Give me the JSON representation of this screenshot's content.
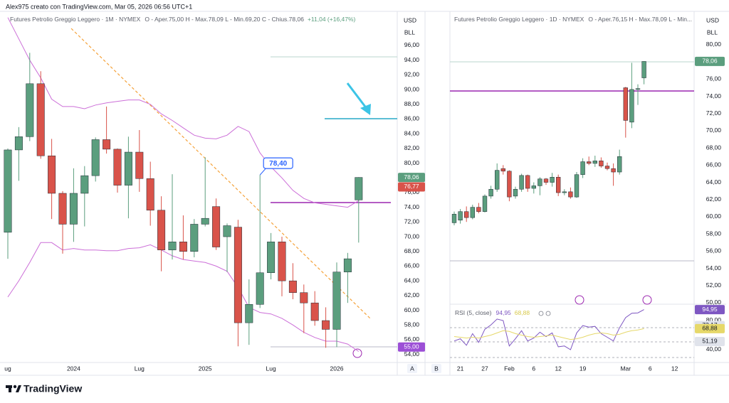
{
  "header": {
    "author_line": "Alex975 creato con TradingView.com, Mar 05, 2026 06:56 UTC+1"
  },
  "footer": {
    "logo_text": "TradingView"
  },
  "buttons": [
    "A",
    "B"
  ],
  "chart_data": [
    {
      "type": "candlestick",
      "title": "Futures Petrolio Greggio Leggero · 1M · NYMEX",
      "ohlc_text": "O - Aper.75,00  H - Max.78,09  L - Min.69,20  C - Chius.78,06",
      "change": "+11,04 (+16,47%)",
      "currency": "USD",
      "unit": "BLL",
      "up_color": "#5b9e7e",
      "down_color": "#d9534a",
      "grid": false,
      "categories": [
        "ug",
        null,
        null,
        null,
        null,
        null,
        "2024",
        null,
        null,
        null,
        null,
        null,
        "Lug",
        null,
        null,
        null,
        null,
        null,
        "2025",
        null,
        null,
        null,
        null,
        null,
        "Lug",
        null,
        null,
        null,
        null,
        null,
        "2026",
        null,
        null,
        null,
        null,
        null
      ],
      "open": [
        70.6,
        81.8,
        83.6,
        90.8,
        81.0,
        75.9,
        71.7,
        75.9,
        78.3,
        83.2,
        81.9,
        77.0,
        81.5,
        77.9,
        73.6,
        68.2,
        69.3,
        68.0,
        71.7,
        74.1,
        70.0,
        71.3,
        58.3,
        60.8,
        65.1,
        69.3,
        64.0,
        62.4,
        61.0,
        58.6,
        57.4,
        65.2,
        75.0,
        null,
        null,
        null
      ],
      "high": [
        82.0,
        84.9,
        95.0,
        92.5,
        83.3,
        76.2,
        79.3,
        79.6,
        83.5,
        87.7,
        82.0,
        83.6,
        84.5,
        80.2,
        75.5,
        78.5,
        72.9,
        72.4,
        80.8,
        75.2,
        71.8,
        72.3,
        64.2,
        78.4,
        70.5,
        70.0,
        66.4,
        63.5,
        62.6,
        60.4,
        66.5,
        67.8,
        78.09,
        null,
        null,
        null
      ],
      "low": [
        67.0,
        77.6,
        83.0,
        80.6,
        72.4,
        67.7,
        69.3,
        71.4,
        77.5,
        81.3,
        76.0,
        72.5,
        76.1,
        71.5,
        65.3,
        66.9,
        66.9,
        67.2,
        71.4,
        68.2,
        65.2,
        55.1,
        55.3,
        60.3,
        64.2,
        61.9,
        61.5,
        56.9,
        57.9,
        54.9,
        55.0,
        61.0,
        69.2,
        null,
        null,
        null
      ],
      "close": [
        81.8,
        83.6,
        90.8,
        81.0,
        75.9,
        71.7,
        75.9,
        78.3,
        83.2,
        81.9,
        77.0,
        81.5,
        77.9,
        73.6,
        68.2,
        69.3,
        68.0,
        71.7,
        72.5,
        68.6,
        71.5,
        58.3,
        60.8,
        65.1,
        69.3,
        64.0,
        62.4,
        61.0,
        58.6,
        57.4,
        65.2,
        67.0,
        78.06,
        null,
        null,
        null
      ],
      "bands": {
        "color": "#cc6fd8",
        "upper": [
          99.8,
          96.9,
          94.0,
          91.6,
          88.7,
          87.7,
          87.7,
          87.4,
          87.9,
          88.2,
          88.4,
          88.6,
          88.6,
          88.0,
          86.7,
          85.8,
          84.8,
          83.8,
          83.4,
          83.3,
          83.8,
          85.0,
          84.3,
          81.4,
          79.5,
          78.0,
          76.3,
          75.2,
          74.6,
          74.4,
          74.2,
          74.0,
          74.9,
          null,
          null,
          null
        ],
        "lower": [
          61.8,
          64.0,
          66.5,
          69.2,
          69.2,
          68.2,
          68.4,
          68.2,
          68.2,
          68.1,
          68.1,
          68.4,
          68.5,
          68.9,
          68.2,
          67.4,
          66.9,
          66.7,
          66.5,
          66.0,
          65.3,
          63.1,
          60.4,
          59.7,
          59.5,
          58.9,
          58.0,
          57.0,
          56.3,
          55.8,
          55.8,
          55.4,
          54.4,
          null,
          null,
          null
        ]
      },
      "callout": {
        "value": 78.4,
        "label": "78,40",
        "color": "#2962ff"
      },
      "ylim": [
        52.9,
        100.25
      ],
      "yticks": [
        {
          "value": 54,
          "label": "54,00"
        },
        {
          "value": 56,
          "label": "56,00"
        },
        {
          "value": 58,
          "label": "58,00"
        },
        {
          "value": 60,
          "label": "60,00"
        },
        {
          "value": 62,
          "label": "62,00"
        },
        {
          "value": 64,
          "label": "64,00"
        },
        {
          "value": 66,
          "label": "66,00"
        },
        {
          "value": 68,
          "label": "68,00"
        },
        {
          "value": 70,
          "label": "70,00"
        },
        {
          "value": 72,
          "label": "72,00"
        },
        {
          "value": 74,
          "label": "74,00"
        },
        {
          "value": 76,
          "label": "76,00"
        },
        {
          "value": 78,
          "label": "78,00"
        },
        {
          "value": 80,
          "label": "80,00"
        },
        {
          "value": 82,
          "label": "82,00"
        },
        {
          "value": 84,
          "label": "84,00"
        },
        {
          "value": 86,
          "label": "86,00"
        },
        {
          "value": 88,
          "label": "88,00"
        },
        {
          "value": 90,
          "label": "90,00"
        },
        {
          "value": 92,
          "label": "92,00"
        },
        {
          "value": 94,
          "label": "94,00"
        },
        {
          "value": 96,
          "label": "96,00"
        }
      ],
      "price_labels": [
        {
          "value": 78.06,
          "label": "78,06",
          "color": "#5b9e7e",
          "text_color": "#ffffff"
        },
        {
          "value": 76.77,
          "label": "76,77",
          "color": "#d9534a",
          "text_color": "#ffffff"
        },
        {
          "value": 55,
          "label": "55,00",
          "color": "#9c4fd6",
          "text_color": "#ffffff"
        }
      ]
    },
    {
      "type": "candlestick",
      "title": "Futures Petrolio Greggio Leggero · 1D · NYMEX",
      "ohlc_text": "O - Aper.76,15  H - Max.78,09  L - Min...",
      "currency": "USD",
      "unit": "BLL",
      "up_color": "#5b9e7e",
      "down_color": "#d9534a",
      "grid": false,
      "categories": [
        null,
        "21",
        null,
        null,
        null,
        "27",
        null,
        null,
        null,
        "Feb",
        null,
        null,
        null,
        "6",
        null,
        null,
        null,
        "12",
        null,
        null,
        null,
        "19",
        null,
        null,
        null,
        null,
        null,
        null,
        "Mar",
        null,
        null,
        null,
        "6",
        null,
        null,
        null,
        "12"
      ],
      "open": [
        59.3,
        59.6,
        60.6,
        59.9,
        61.1,
        60.6,
        62.4,
        63.2,
        65.6,
        65.3,
        62.4,
        63.2,
        64.8,
        63.3,
        63.6,
        64.4,
        64.0,
        64.6,
        62.8,
        62.9,
        62.3,
        64.9,
        66.4,
        66.2,
        66.5,
        65.9,
        65.6,
        65.2,
        75.0,
        71.0,
        74.8,
        76.15,
        null,
        null,
        null,
        null,
        null
      ],
      "high": [
        60.6,
        60.9,
        61.2,
        61.4,
        61.6,
        62.6,
        63.6,
        66.2,
        66.0,
        65.4,
        63.5,
        65.0,
        64.9,
        64.0,
        64.6,
        64.5,
        65.1,
        64.9,
        63.2,
        63.4,
        65.2,
        66.8,
        67.0,
        67.1,
        66.9,
        66.3,
        66.2,
        67.8,
        75.1,
        77.9,
        75.4,
        78.09,
        null,
        null,
        null,
        null,
        null
      ],
      "low": [
        59.0,
        59.2,
        59.4,
        59.7,
        60.4,
        60.5,
        62.1,
        62.9,
        64.9,
        61.8,
        62.1,
        62.9,
        62.9,
        62.7,
        62.5,
        63.7,
        63.5,
        62.4,
        62.5,
        62.1,
        62.2,
        64.5,
        66.0,
        65.8,
        65.7,
        65.4,
        63.6,
        64.9,
        69.2,
        70.3,
        73.0,
        75.4,
        null,
        null,
        null,
        null,
        null
      ],
      "close": [
        60.3,
        60.6,
        59.9,
        61.1,
        60.6,
        62.4,
        63.2,
        65.4,
        65.3,
        62.3,
        63.2,
        64.8,
        63.3,
        63.6,
        64.4,
        64.0,
        64.6,
        62.8,
        62.9,
        62.3,
        64.9,
        66.4,
        66.2,
        66.5,
        65.9,
        65.6,
        65.2,
        67.0,
        71.2,
        74.8,
        74.9,
        78.06,
        null,
        null,
        null,
        null,
        null
      ],
      "ylim": [
        49.83,
        83.55
      ],
      "yticks": [
        {
          "value": 50,
          "label": "50,00"
        },
        {
          "value": 52,
          "label": "52,00"
        },
        {
          "value": 54,
          "label": "54,00"
        },
        {
          "value": 56,
          "label": "56,00"
        },
        {
          "value": 58,
          "label": "58,00"
        },
        {
          "value": 60,
          "label": "60,00"
        },
        {
          "value": 62,
          "label": "62,00"
        },
        {
          "value": 64,
          "label": "64,00"
        },
        {
          "value": 66,
          "label": "66,00"
        },
        {
          "value": 68,
          "label": "68,00"
        },
        {
          "value": 70,
          "label": "70,00"
        },
        {
          "value": 72,
          "label": "72,00"
        },
        {
          "value": 74,
          "label": "74,00"
        },
        {
          "value": 76,
          "label": "76,00"
        },
        {
          "value": 80,
          "label": "80,00"
        }
      ],
      "price_labels": [
        {
          "value": 78.06,
          "label": "78,06",
          "color": "#5b9e7e",
          "text_color": "#ffffff"
        }
      ]
    },
    {
      "type": "line",
      "title": "RSI (5, close)",
      "header_values": [
        "94,95",
        "68,88"
      ],
      "grid": false,
      "series": [
        {
          "color": "#7e57c2",
          "values": [
            52,
            55,
            46,
            62,
            50,
            68,
            74,
            82,
            80,
            45,
            55,
            66,
            52,
            56,
            64,
            58,
            63,
            44,
            45,
            40,
            63,
            73,
            71,
            72,
            62,
            57,
            52,
            70,
            84,
            90,
            90.5,
            94.95,
            null,
            null,
            null,
            null,
            null
          ]
        },
        {
          "color": "#e6d86a",
          "values": [
            58,
            57,
            56,
            57,
            56,
            58,
            60,
            63,
            66,
            65,
            62,
            60,
            58,
            57,
            58,
            59,
            60,
            58,
            56,
            54,
            55,
            57,
            60,
            62,
            63,
            62,
            60,
            61,
            64,
            66,
            67,
            68.88,
            null,
            null,
            null,
            null,
            null
          ]
        }
      ],
      "ylim": [
        22.4,
        102.4
      ],
      "yticks": [
        {
          "value": 40,
          "label": "40,00"
        },
        {
          "value": 80,
          "label": "80,00"
        }
      ],
      "price_labels": [
        {
          "value": 94.95,
          "label": "94,95",
          "color": "#7e57c2",
          "text_color": "#ffffff"
        },
        {
          "value": 73.17,
          "label": "73,17",
          "color": "#e0e3eb",
          "text_color": "#131722"
        },
        {
          "value": 68.88,
          "label": "68,88",
          "color": "#e6d86a",
          "text_color": "#131722"
        },
        {
          "value": 51.19,
          "label": "51,19",
          "color": "#e0e3eb",
          "text_color": "#131722"
        }
      ]
    }
  ]
}
